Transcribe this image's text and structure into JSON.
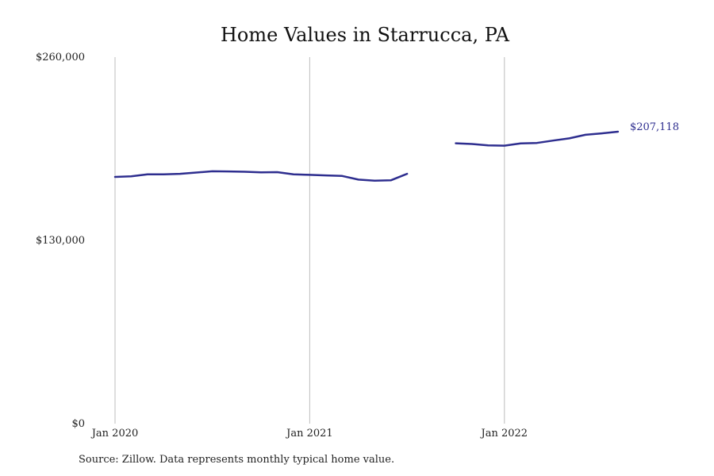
{
  "chart_data": {
    "type": "line",
    "title": "Home Values in Starrucca, PA",
    "xlabel": "",
    "ylabel": "",
    "ylim": [
      0,
      260000
    ],
    "y_ticks": [
      {
        "value": 0,
        "label": "$0"
      },
      {
        "value": 130000,
        "label": "$130,000"
      },
      {
        "value": 260000,
        "label": "$260,000"
      }
    ],
    "x_ticks": [
      {
        "value": "2020-01",
        "label": "Jan 2020"
      },
      {
        "value": "2021-01",
        "label": "Jan 2021"
      },
      {
        "value": "2022-01",
        "label": "Jan 2022"
      }
    ],
    "grid": "vertical lines at x ticks",
    "series": [
      {
        "color": "#2e2e8f",
        "points": [
          {
            "x": "2020-01",
            "y": 175000
          },
          {
            "x": "2020-02",
            "y": 175400
          },
          {
            "x": "2020-03",
            "y": 176800
          },
          {
            "x": "2020-04",
            "y": 176900
          },
          {
            "x": "2020-05",
            "y": 177200
          },
          {
            "x": "2020-06",
            "y": 178100
          },
          {
            "x": "2020-07",
            "y": 179000
          },
          {
            "x": "2020-08",
            "y": 178900
          },
          {
            "x": "2020-09",
            "y": 178700
          },
          {
            "x": "2020-10",
            "y": 178300
          },
          {
            "x": "2020-11",
            "y": 178400
          },
          {
            "x": "2020-12",
            "y": 176900
          },
          {
            "x": "2021-01",
            "y": 176500
          },
          {
            "x": "2021-02",
            "y": 176100
          },
          {
            "x": "2021-03",
            "y": 175700
          },
          {
            "x": "2021-04",
            "y": 173100
          },
          {
            "x": "2021-05",
            "y": 172300
          },
          {
            "x": "2021-06",
            "y": 172600
          },
          {
            "x": "2021-07",
            "y": 177200
          },
          {
            "x": "2021-08",
            "y": null
          },
          {
            "x": "2021-09",
            "y": null
          },
          {
            "x": "2021-10",
            "y": 198900
          },
          {
            "x": "2021-11",
            "y": 198400
          },
          {
            "x": "2021-12",
            "y": 197400
          },
          {
            "x": "2022-01",
            "y": 197200
          },
          {
            "x": "2022-02",
            "y": 198800
          },
          {
            "x": "2022-03",
            "y": 199100
          },
          {
            "x": "2022-04",
            "y": 200800
          },
          {
            "x": "2022-05",
            "y": 202400
          },
          {
            "x": "2022-06",
            "y": 204900
          },
          {
            "x": "2022-07",
            "y": 205900
          },
          {
            "x": "2022-08",
            "y": 207118
          }
        ]
      }
    ],
    "last_value_label": "$207,118"
  },
  "source_note": "Source: Zillow. Data represents monthly typical home value."
}
